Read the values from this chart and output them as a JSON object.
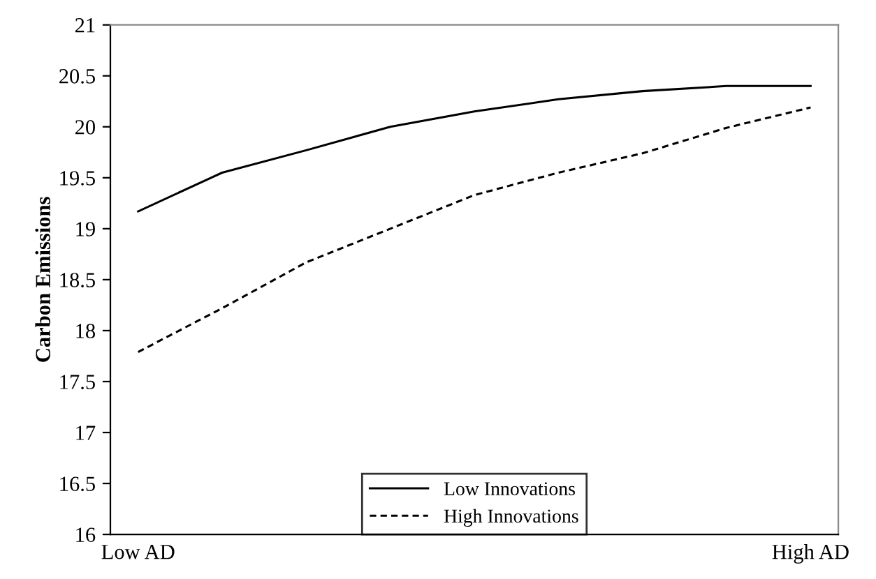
{
  "chart_data": {
    "type": "line",
    "ylabel": "Carbon Emissions",
    "categories": [
      "Low AD",
      null,
      null,
      null,
      null,
      null,
      null,
      null,
      "High AD"
    ],
    "series": [
      {
        "name": "Low Innovations",
        "color": "#000000",
        "line_style": "solid",
        "values": [
          19.17,
          19.55,
          19.77,
          20.0,
          20.15,
          20.27,
          20.35,
          20.4,
          20.4
        ]
      },
      {
        "name": "High Innovations",
        "color": "#000000",
        "line_style": "dashed",
        "values": [
          17.79,
          18.22,
          18.67,
          19.0,
          19.33,
          19.55,
          19.74,
          19.99,
          20.19
        ]
      }
    ],
    "ylim": [
      16,
      21
    ],
    "yticks": [
      16,
      16.5,
      17,
      17.5,
      18,
      18.5,
      19,
      19.5,
      20,
      20.5,
      21
    ],
    "grid": false,
    "legend": "bottom",
    "marker": "none"
  }
}
